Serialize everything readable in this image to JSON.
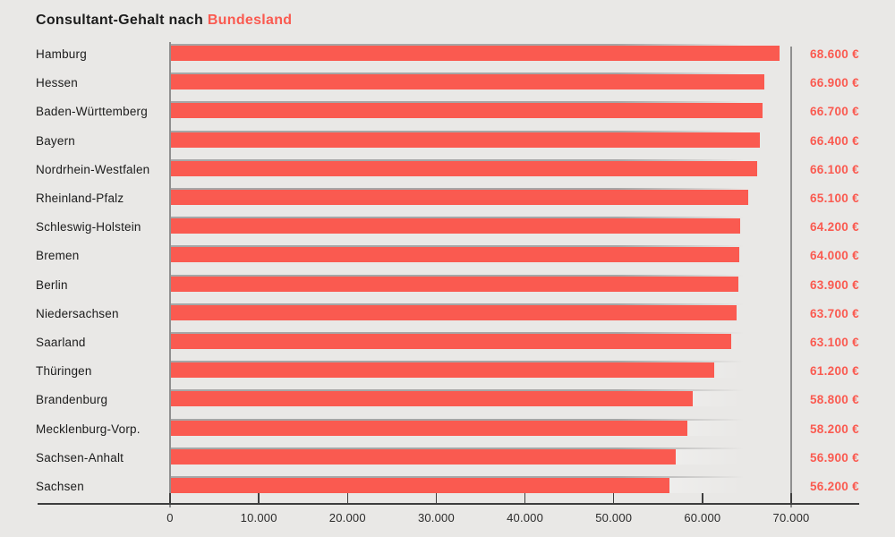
{
  "title": {
    "prefix": "Consultant-Gehalt nach ",
    "highlight": "Bundesland"
  },
  "colors": {
    "background": "#e9e8e6",
    "bar": "#fa5a50",
    "accent_text": "#fa5a50",
    "ink": "#1c1c1c",
    "axis_dark": "#3e3e3e",
    "axis_gray": "#8f8f8f",
    "row_line": "#a6a6a6"
  },
  "chart_data": {
    "type": "bar",
    "orientation": "horizontal",
    "title": "Consultant-Gehalt nach Bundesland",
    "xlabel": "",
    "ylabel": "",
    "grid": false,
    "legend": false,
    "xlim": [
      0,
      70000
    ],
    "categories": [
      "Hamburg",
      "Hessen",
      "Baden-Württemberg",
      "Bayern",
      "Nordrhein-Westfalen",
      "Rheinland-Pfalz",
      "Schleswig-Holstein",
      "Bremen",
      "Berlin",
      "Niedersachsen",
      "Saarland",
      "Thüringen",
      "Brandenburg",
      "Mecklenburg-Vorp.",
      "Sachsen-Anhalt",
      "Sachsen"
    ],
    "values": [
      68600,
      66900,
      66700,
      66400,
      66100,
      65100,
      64200,
      64000,
      63900,
      63700,
      63100,
      61200,
      58800,
      58200,
      56900,
      56200
    ],
    "value_labels": [
      "68.600 €",
      "66.900 €",
      "66.700 €",
      "66.400 €",
      "66.100 €",
      "65.100 €",
      "64.200 €",
      "64.000 €",
      "63.900 €",
      "63.700 €",
      "63.100 €",
      "61.200 €",
      "58.800 €",
      "58.200 €",
      "56.900 €",
      "56.200 €"
    ],
    "x_ticks": [
      0,
      10000,
      20000,
      30000,
      40000,
      50000,
      60000,
      70000
    ],
    "x_tick_labels": [
      "0",
      "10.000",
      "20.000",
      "30.000",
      "40.000",
      "50.000",
      "60.000",
      "70.000"
    ],
    "reference_line_x": 70000
  }
}
